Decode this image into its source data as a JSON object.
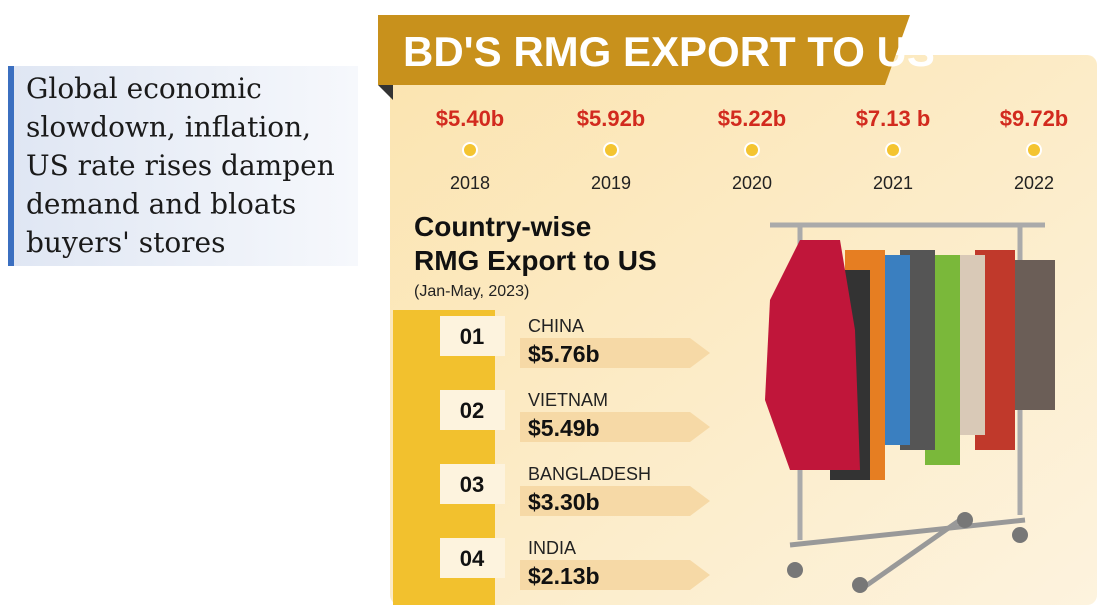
{
  "headline": {
    "lines": [
      "Global economic",
      "slowdown, inflation,",
      "US rate rises dampen",
      "demand and bloats",
      "buyers' stores"
    ]
  },
  "banner": {
    "title": "BD'S RMG EXPORT TO US"
  },
  "timeline": [
    {
      "value": "$5.40b",
      "year": "2018"
    },
    {
      "value": "$5.92b",
      "year": "2019"
    },
    {
      "value": "$5.22b",
      "year": "2020"
    },
    {
      "value": "$7.13 b",
      "year": "2021"
    },
    {
      "value": "$9.72b",
      "year": "2022"
    }
  ],
  "ranking": {
    "title_lines": [
      "Country-wise",
      "RMG Export to US"
    ],
    "period": "(Jan-May, 2023)",
    "items": [
      {
        "rank": "01",
        "country": "CHINA",
        "value": "$5.76b"
      },
      {
        "rank": "02",
        "country": "VIETNAM",
        "value": "$5.49b"
      },
      {
        "rank": "03",
        "country": "BANGLADESH",
        "value": "$3.30b"
      },
      {
        "rank": "04",
        "country": "INDIA",
        "value": "$2.13b"
      }
    ]
  }
}
